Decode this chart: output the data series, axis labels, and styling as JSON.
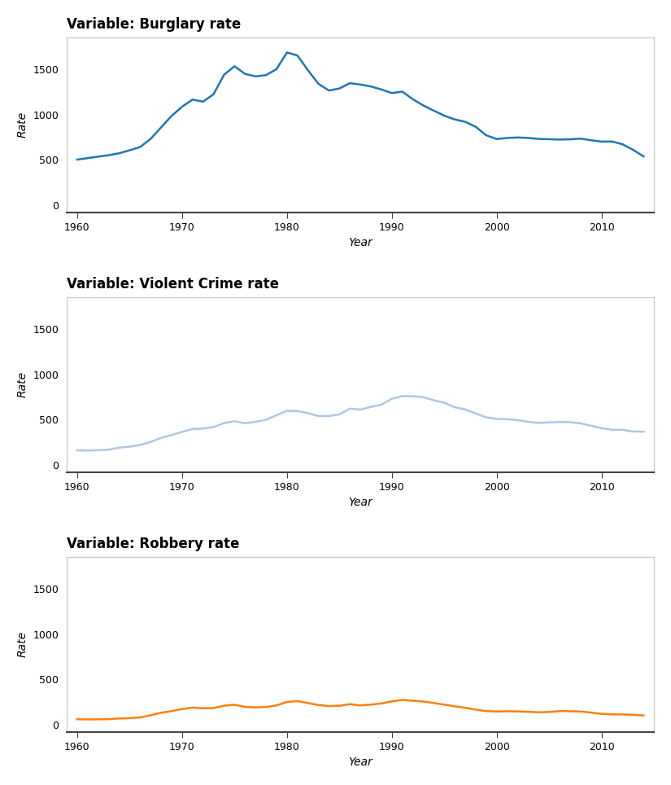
{
  "title1": "Variable: Burglary rate",
  "title2": "Variable: Violent Crime rate",
  "title3": "Variable: Robbery rate",
  "xlabel": "Year",
  "ylabel": "Rate",
  "color1": "#1f77b4",
  "color2": "#aec7e8",
  "color3": "#ff7f0e",
  "years": [
    1960,
    1961,
    1962,
    1963,
    1964,
    1965,
    1966,
    1967,
    1968,
    1969,
    1970,
    1971,
    1972,
    1973,
    1974,
    1975,
    1976,
    1977,
    1978,
    1979,
    1980,
    1981,
    1982,
    1983,
    1984,
    1985,
    1986,
    1987,
    1988,
    1989,
    1990,
    1991,
    1992,
    1993,
    1994,
    1995,
    1996,
    1997,
    1998,
    1999,
    2000,
    2001,
    2002,
    2003,
    2004,
    2005,
    2006,
    2007,
    2008,
    2009,
    2010,
    2011,
    2012,
    2013,
    2014
  ],
  "burglary": [
    502,
    518,
    535,
    550,
    572,
    605,
    641,
    730,
    857,
    984,
    1085,
    1164,
    1141,
    1223,
    1438,
    1532,
    1448,
    1420,
    1434,
    1499,
    1684,
    1650,
    1488,
    1338,
    1264,
    1287,
    1345,
    1330,
    1309,
    1276,
    1236,
    1252,
    1168,
    1099,
    1042,
    987,
    945,
    919,
    863,
    770,
    729,
    741,
    746,
    741,
    730,
    727,
    723,
    726,
    733,
    716,
    700,
    702,
    671,
    610,
    537
  ],
  "violent": [
    161,
    158,
    162,
    168,
    190,
    201,
    220,
    253,
    298,
    329,
    364,
    396,
    401,
    417,
    461,
    481,
    459,
    475,
    497,
    548,
    597,
    594,
    571,
    538,
    539,
    557,
    620,
    610,
    640,
    663,
    730,
    758,
    757,
    747,
    713,
    685,
    636,
    611,
    568,
    524,
    507,
    504,
    494,
    475,
    463,
    469,
    474,
    471,
    458,
    431,
    405,
    387,
    387,
    368,
    366
  ],
  "robbery": [
    60,
    58,
    59,
    61,
    68,
    72,
    80,
    103,
    132,
    149,
    172,
    188,
    181,
    183,
    209,
    220,
    196,
    190,
    195,
    212,
    251,
    259,
    238,
    217,
    205,
    209,
    226,
    213,
    221,
    234,
    257,
    273,
    264,
    256,
    238,
    221,
    202,
    186,
    166,
    150,
    145,
    148,
    146,
    142,
    136,
    140,
    150,
    148,
    145,
    133,
    119,
    114,
    113,
    109,
    102
  ],
  "ylim": [
    -80,
    1850
  ],
  "yticks": [
    0,
    500,
    1000,
    1500
  ],
  "xlim": [
    1959,
    2015
  ],
  "xticks": [
    1960,
    1970,
    1980,
    1990,
    2000,
    2010
  ],
  "spine_color": "#444444",
  "box_color": "#cccccc",
  "bg_color": "#ffffff",
  "title_fontsize": 12,
  "axis_label_fontsize": 10,
  "tick_fontsize": 9,
  "linewidth": 1.8
}
